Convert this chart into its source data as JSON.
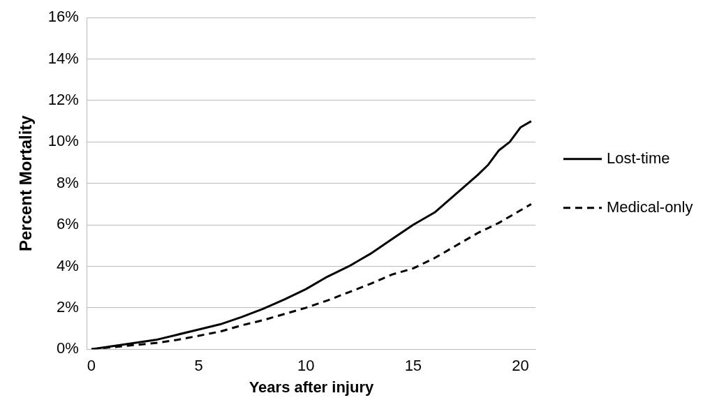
{
  "chart_data": {
    "type": "line",
    "xlabel": "Years after injury",
    "ylabel": "Percent Mortality",
    "x": [
      0,
      1,
      2,
      3,
      4,
      5,
      6,
      7,
      8,
      9,
      10,
      11,
      12,
      12.5,
      13,
      14,
      15,
      16,
      17,
      18,
      18.5,
      19,
      19.5,
      20,
      20.5
    ],
    "series": [
      {
        "name": "Lost-time",
        "color": "#000000",
        "line_style": "solid",
        "values": [
          0,
          0.15,
          0.3,
          0.45,
          0.7,
          0.95,
          1.2,
          1.55,
          1.95,
          2.4,
          2.9,
          3.5,
          4.0,
          4.3,
          4.6,
          5.3,
          6.0,
          6.6,
          7.5,
          8.4,
          8.9,
          9.6,
          10.0,
          10.7,
          11.0
        ]
      },
      {
        "name": "Medical-only",
        "color": "#000000",
        "line_style": "dashed",
        "values": [
          0,
          0.1,
          0.2,
          0.3,
          0.45,
          0.65,
          0.85,
          1.15,
          1.4,
          1.7,
          2.0,
          2.35,
          2.75,
          2.95,
          3.15,
          3.6,
          3.9,
          4.4,
          5.0,
          5.6,
          5.85,
          6.1,
          6.4,
          6.7,
          7.0
        ]
      }
    ],
    "xlim": [
      -0.2,
      20.7
    ],
    "xticks": [
      0,
      5,
      10,
      15,
      20
    ],
    "ylim": [
      0,
      16
    ],
    "yticks": [
      {
        "value": 0,
        "label": "0%"
      },
      {
        "value": 2,
        "label": "2%"
      },
      {
        "value": 4,
        "label": "4%"
      },
      {
        "value": 6,
        "label": "6%"
      },
      {
        "value": 8,
        "label": "8%"
      },
      {
        "value": 10,
        "label": "10%"
      },
      {
        "value": 12,
        "label": "12%"
      },
      {
        "value": 14,
        "label": "14%"
      },
      {
        "value": 16,
        "label": "16%"
      }
    ],
    "grid": "y",
    "legend": "right",
    "marker": "none"
  }
}
